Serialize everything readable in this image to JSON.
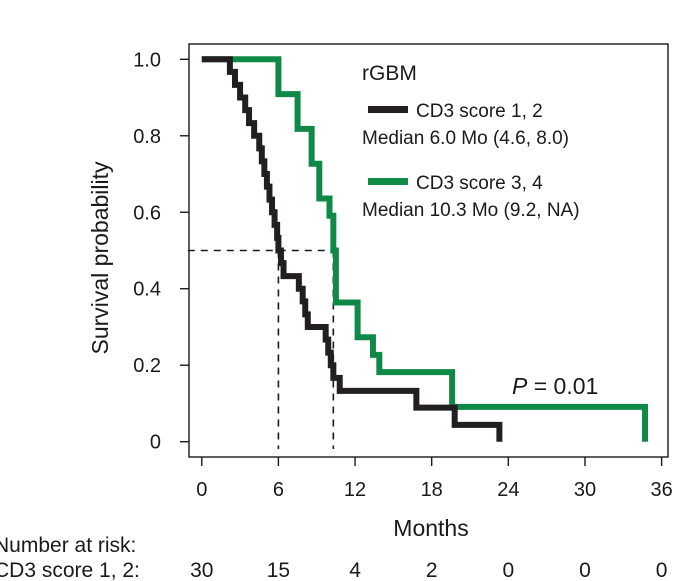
{
  "chart_data": {
    "type": "line",
    "subtype": "kaplan-meier",
    "title": "rGBM",
    "xlabel": "Months",
    "ylabel": "Survival probability",
    "xlim": [
      -1,
      36.5
    ],
    "ylim": [
      -0.04,
      1.04
    ],
    "xticks": [
      0,
      6,
      12,
      18,
      24,
      30,
      36
    ],
    "yticks": [
      1.0,
      0.8,
      0.6,
      0.4,
      0.2,
      0
    ],
    "ytick_labels": [
      "1.0",
      "0.8",
      "0.6",
      "0.4",
      "0.2",
      "0"
    ],
    "series": [
      {
        "name": "CD3 score 1, 2",
        "median_label": "Median 6.0 Mo (4.6, 8.0)",
        "color": "#231f20",
        "median": 6.0,
        "steps": [
          [
            0,
            1.0
          ],
          [
            2.2,
            0.967
          ],
          [
            2.6,
            0.933
          ],
          [
            3.0,
            0.9
          ],
          [
            3.4,
            0.867
          ],
          [
            3.7,
            0.833
          ],
          [
            4.1,
            0.8
          ],
          [
            4.5,
            0.767
          ],
          [
            4.7,
            0.733
          ],
          [
            4.9,
            0.7
          ],
          [
            5.1,
            0.667
          ],
          [
            5.3,
            0.633
          ],
          [
            5.5,
            0.6
          ],
          [
            5.7,
            0.567
          ],
          [
            5.9,
            0.533
          ],
          [
            6.0,
            0.5
          ],
          [
            6.2,
            0.467
          ],
          [
            6.4,
            0.433
          ],
          [
            7.6,
            0.4
          ],
          [
            7.9,
            0.367
          ],
          [
            8.1,
            0.333
          ],
          [
            8.3,
            0.3
          ],
          [
            9.7,
            0.267
          ],
          [
            9.9,
            0.233
          ],
          [
            10.1,
            0.2
          ],
          [
            10.3,
            0.167
          ],
          [
            10.8,
            0.133
          ],
          [
            16.8,
            0.089
          ],
          [
            19.8,
            0.044
          ],
          [
            23.3,
            0.0
          ]
        ],
        "end": 23.3
      },
      {
        "name": "CD3 score 3, 4",
        "median_label": "Median 10.3 Mo (9.2, NA)",
        "color": "#0f8a46",
        "median": 10.3,
        "steps": [
          [
            0,
            1.0
          ],
          [
            6.0,
            0.909
          ],
          [
            7.5,
            0.818
          ],
          [
            8.6,
            0.727
          ],
          [
            9.2,
            0.636
          ],
          [
            10.0,
            0.591
          ],
          [
            10.3,
            0.5
          ],
          [
            10.5,
            0.364
          ],
          [
            12.2,
            0.273
          ],
          [
            13.4,
            0.227
          ],
          [
            13.9,
            0.182
          ],
          [
            19.6,
            0.091
          ],
          [
            34.7,
            0.0
          ]
        ],
        "end": 34.7
      }
    ],
    "annotation": {
      "p_label": "P",
      "p_value": " = 0.01"
    },
    "median_line": 0.5,
    "risk_table": {
      "title": "Number at risk:",
      "rows": [
        {
          "label": "CD3 score 1, 2:",
          "values": [
            "30",
            "15",
            "4",
            "2",
            "0",
            "0",
            "0"
          ]
        }
      ]
    }
  }
}
